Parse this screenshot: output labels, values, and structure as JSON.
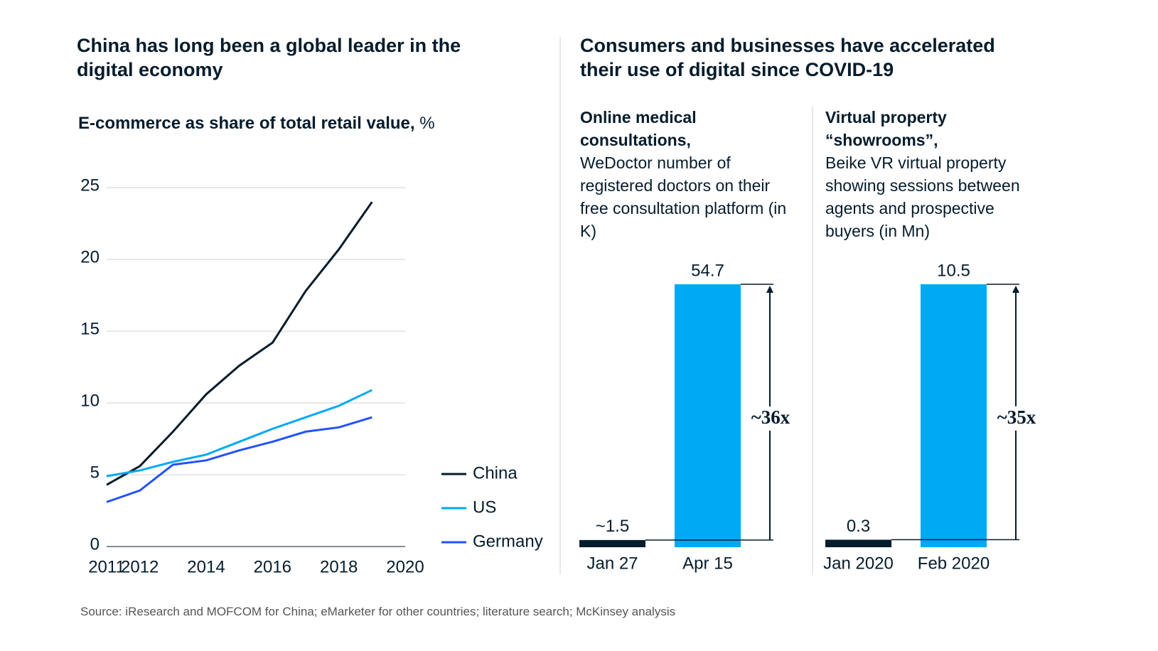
{
  "panels": [
    {
      "title": "China has long been a global leader in the digital economy"
    },
    {
      "title": "Consumers and businesses have accelerated their use of digital since COVID-19"
    }
  ],
  "chart_data": [
    {
      "type": "line",
      "title": "E-commerce as share of total retail value,",
      "unit": "%",
      "x": [
        2011,
        2012,
        2013,
        2014,
        2015,
        2016,
        2017,
        2018,
        2019
      ],
      "series": [
        {
          "name": "China",
          "color": "#051c2c",
          "values": [
            4.3,
            5.6,
            8.0,
            10.6,
            12.6,
            14.2,
            17.8,
            20.7,
            24.0
          ]
        },
        {
          "name": "US",
          "color": "#00a9f4",
          "values": [
            4.9,
            5.3,
            5.9,
            6.4,
            7.3,
            8.2,
            9.0,
            9.8,
            10.9
          ]
        },
        {
          "name": "Germany",
          "color": "#2251ff",
          "values": [
            3.1,
            3.9,
            5.7,
            6.0,
            6.7,
            7.3,
            8.0,
            8.3,
            9.0
          ]
        }
      ],
      "xlim": [
        2011,
        2020
      ],
      "xticks": [
        2011,
        2012,
        2014,
        2016,
        2018,
        2020
      ],
      "ylim": [
        0,
        25
      ],
      "yticks": [
        0,
        5,
        10,
        15,
        20,
        25
      ],
      "grid": true,
      "legend": "right"
    },
    {
      "type": "bar",
      "title": "Online medical consultations,",
      "subtitle": "WeDoctor number of registered doctors on their free consultation platform (in K)",
      "categories": [
        "Jan 27",
        "Apr 15"
      ],
      "values": [
        1.5,
        54.7
      ],
      "value_labels": [
        "~1.5",
        "54.7"
      ],
      "colors": [
        "#051c2c",
        "#00a9f4"
      ],
      "annotation": "~36x"
    },
    {
      "type": "bar",
      "title": "Virtual property “showrooms”,",
      "subtitle": "Beike VR virtual property showing sessions between agents and prospective buyers (in Mn)",
      "categories": [
        "Jan 2020",
        "Feb 2020"
      ],
      "values": [
        0.3,
        10.5
      ],
      "value_labels": [
        "0.3",
        "10.5"
      ],
      "colors": [
        "#051c2c",
        "#00a9f4"
      ],
      "annotation": "~35x"
    }
  ],
  "source": "Source: iResearch and MOFCOM for China; eMarketer for other countries; literature search; McKinsey analysis"
}
